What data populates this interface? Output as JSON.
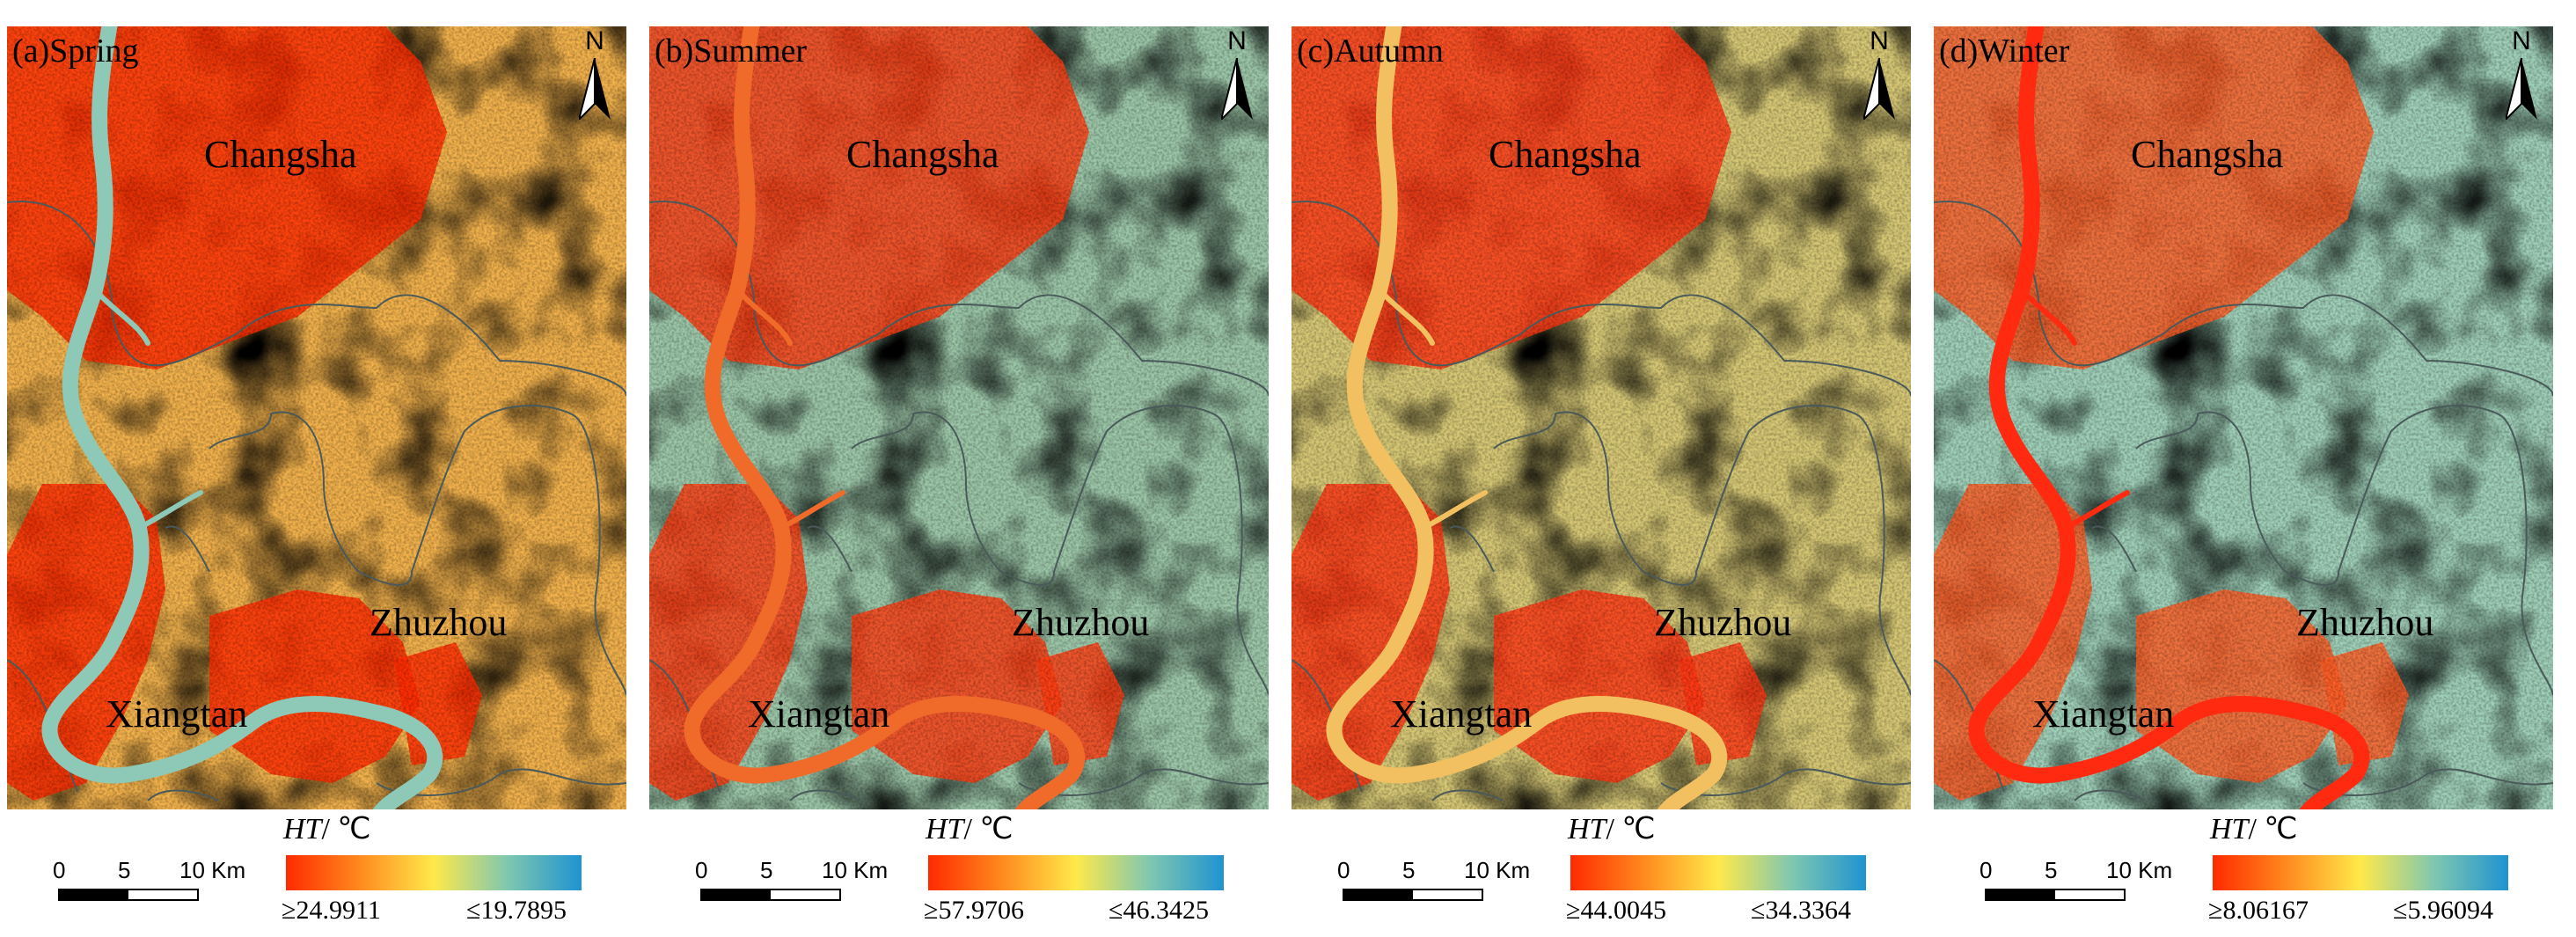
{
  "panels": [
    {
      "label": "(a)Spring",
      "cities": [
        "Changsha",
        "Zhuzhou",
        "Xiangtan"
      ],
      "north": "N",
      "axis_label_var": "HT",
      "axis_label_unit": "/ ℃",
      "scale": {
        "zero": "0",
        "five": "5",
        "ten": "10 Km"
      },
      "legend_max": "≥24.9911",
      "legend_min": "≤19.7895",
      "colors": {
        "base": "#f1b14c",
        "hot": "#ff2a00",
        "cool": "#62b0c8",
        "river": "#8ec8b6"
      }
    },
    {
      "label": "(b)Summer",
      "cities": [
        "Changsha",
        "Zhuzhou",
        "Xiangtan"
      ],
      "north": "N",
      "axis_label_var": "HT",
      "axis_label_unit": "/ ℃",
      "scale": {
        "zero": "0",
        "five": "5",
        "ten": "10 Km"
      },
      "legend_max": "≥57.9706",
      "legend_min": "≤46.3425",
      "colors": {
        "base": "#9cc6a8",
        "hot": "#ff3b10",
        "cool": "#63acc6",
        "river": "#f06a2a"
      }
    },
    {
      "label": "(c)Autumn",
      "cities": [
        "Changsha",
        "Zhuzhou",
        "Xiangtan"
      ],
      "north": "N",
      "axis_label_var": "HT",
      "axis_label_unit": "/ ℃",
      "scale": {
        "zero": "0",
        "five": "5",
        "ten": "10 Km"
      },
      "legend_max": "≥44.0045",
      "legend_min": "≤34.3364",
      "colors": {
        "base": "#d6c775",
        "hot": "#ff3412",
        "cool": "#5fa9c6",
        "river": "#f2c061"
      }
    },
    {
      "label": "(d)Winter",
      "cities": [
        "Changsha",
        "Zhuzhou",
        "Xiangtan"
      ],
      "north": "N",
      "axis_label_var": "HT",
      "axis_label_unit": "/ ℃",
      "scale": {
        "zero": "0",
        "five": "5",
        "ten": "10 Km"
      },
      "legend_max": "≥8.06167",
      "legend_min": "≤5.96094",
      "colors": {
        "base": "#9fcfb8",
        "hot": "#ff5a22",
        "cool": "#3c99cf",
        "river": "#ff2a10"
      }
    }
  ]
}
